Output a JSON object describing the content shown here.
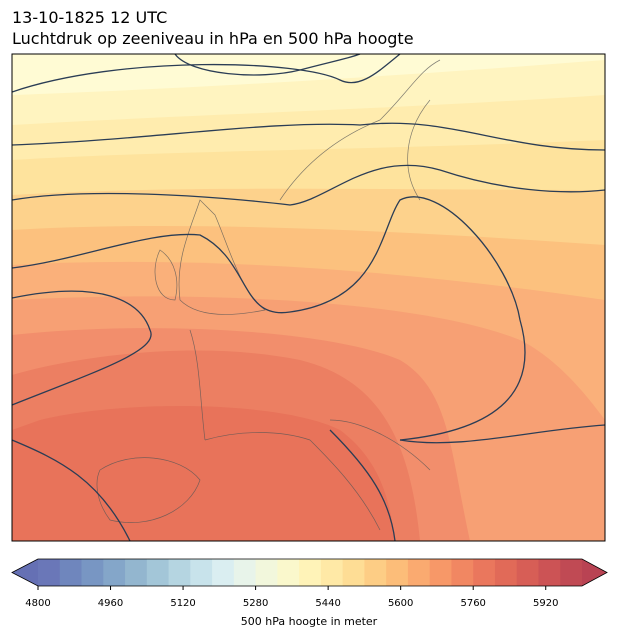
{
  "header": {
    "title": "13-10-1825 12 UTC",
    "subtitle": "Luchtdruk op zeeniveau in hPa en 500 hPa hoogte"
  },
  "colorbar": {
    "range": [
      4800,
      6000
    ],
    "ticks": [
      4800,
      4960,
      5120,
      5280,
      5440,
      5600,
      5760,
      5920
    ],
    "label": "500 hPa hoogte in meter"
  }
}
